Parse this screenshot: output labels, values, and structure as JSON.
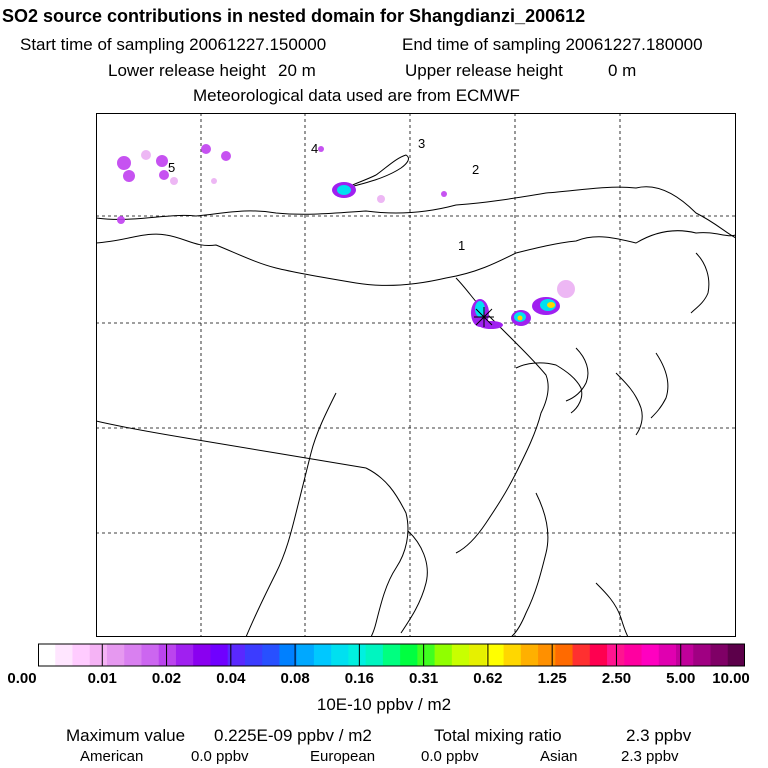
{
  "header": {
    "title": "SO2 source contributions in nested domain for Shangdianzi_200612",
    "start_label": "Start time of sampling 20061227.150000",
    "end_label": "End time of sampling 20061227.180000",
    "lower_label": "Lower release height",
    "lower_value": "20 m",
    "upper_label": "Upper release height",
    "upper_value": "0 m",
    "met_label": "Meteorological data used are from ECMWF"
  },
  "map": {
    "region_labels": [
      "1",
      "2",
      "3",
      "4",
      "5"
    ]
  },
  "colorbar": {
    "colors": [
      "#ffffff",
      "#ffe6ff",
      "#ffccff",
      "#f5b3f5",
      "#e699f0",
      "#d980f0",
      "#cc66f0",
      "#bb44ee",
      "#a020f0",
      "#8a00f0",
      "#7000ff",
      "#5a28ff",
      "#3c3cff",
      "#2850ff",
      "#0080ff",
      "#00a8ff",
      "#00c8ff",
      "#00e0f0",
      "#00f0e0",
      "#00f5c0",
      "#00ff80",
      "#00ff40",
      "#40ff20",
      "#90ff00",
      "#c8ff00",
      "#e6f000",
      "#ffff00",
      "#ffd700",
      "#ffb000",
      "#ff9000",
      "#ff6a00",
      "#ff3030",
      "#ff0050",
      "#ff1490",
      "#ff00a0",
      "#ff00c0",
      "#e000b0",
      "#c0009a",
      "#a00082",
      "#7f0066",
      "#5c004a"
    ],
    "tick_labels": [
      "0.00",
      "0.01",
      "0.02",
      "0.04",
      "0.08",
      "0.16",
      "0.31",
      "0.62",
      "1.25",
      "2.50",
      "5.00",
      "10.00"
    ],
    "units": "10E-10 ppbv / m2"
  },
  "summary": {
    "max_label": "Maximum value",
    "max_value": "0.225E-09 ppbv / m2",
    "total_label": "Total mixing ratio",
    "total_value": "2.3 ppbv",
    "american_label": "American",
    "american_value": "0.0 ppbv",
    "european_label": "European",
    "european_value": "0.0 ppbv",
    "asian_label": "Asian",
    "asian_value": "2.3 ppbv"
  }
}
